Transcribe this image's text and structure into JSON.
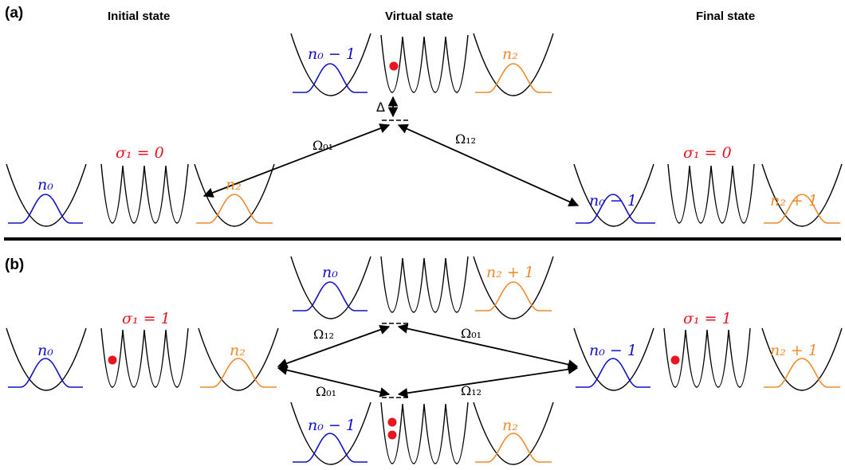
{
  "headers": {
    "initial": "Initial state",
    "virtual": "Virtual state",
    "final": "Final state"
  },
  "panels": {
    "a": "(a)",
    "b": "(b)"
  },
  "labels": {
    "a_init_n0": "n₀",
    "a_init_sigma": "σ₁ = 0",
    "a_init_n2": "n₂",
    "a_virt_n0": "n₀ − 1",
    "a_virt_n2": "n₂",
    "a_delta": "Δ",
    "a_omega01": "Ω₀₁",
    "a_omega12": "Ω₁₂",
    "a_final_n0": "n₀ − 1",
    "a_final_sigma": "σ₁ = 0",
    "a_final_n2": "n₂ + 1",
    "b_top_n0": "n₀",
    "b_top_n2": "n₂ + 1",
    "b_init_n0": "n₀",
    "b_init_sigma": "σ₁ = 1",
    "b_init_n2": "n₂",
    "b_omega12_top": "Ω₁₂",
    "b_omega01_top": "Ω₀₁",
    "b_omega01_bot": "Ω₀₁",
    "b_omega12_bot": "Ω₁₂",
    "b_final_n0": "n₀ − 1",
    "b_final_sigma": "σ₁ = 1",
    "b_final_n2": "n₂ + 1",
    "b_bot_n0": "n₀ − 1",
    "b_bot_n2": "n₂"
  },
  "colors": {
    "mode0": "#1010c8",
    "mode2": "#f08a2a",
    "spin": "#e8141e",
    "line": "#000000"
  }
}
